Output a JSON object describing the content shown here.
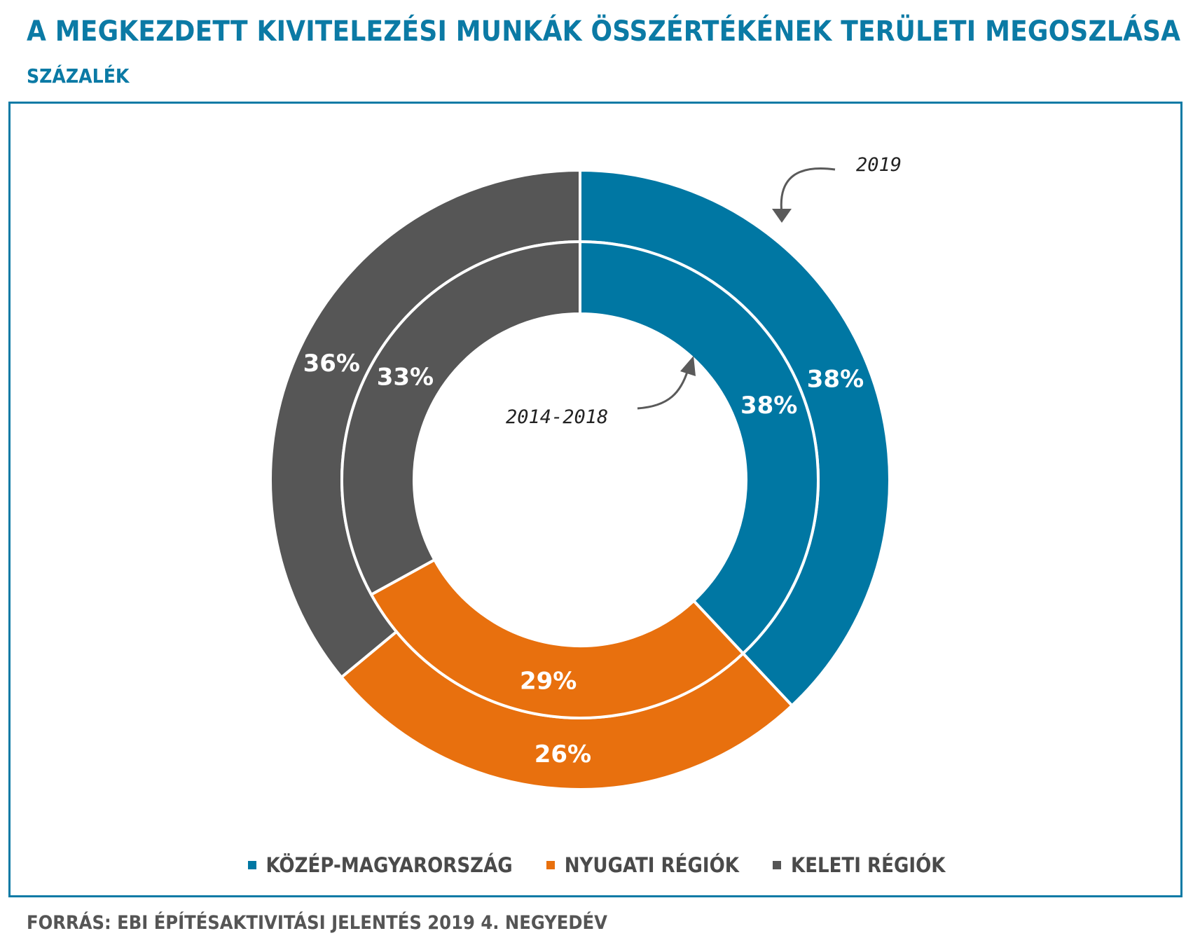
{
  "header": {
    "title": "A MEGKEZDETT KIVITELEZÉSI MUNKÁK ÖSSZÉRTÉKÉNEK TERÜLETI MEGOSZLÁSA",
    "subtitle": "SZÁZALÉK"
  },
  "source": "FORRÁS: EBI ÉPÍTÉSAKTIVITÁSI JELENTÉS 2019 4. NEGYEDÉV",
  "chart_data": {
    "type": "donut",
    "categories": [
      "KÖZÉP-MAGYARORSZÁG",
      "NYUGATI RÉGIÓK",
      "KELETI RÉGIÓK"
    ],
    "colors": [
      "#0077a3",
      "#e8700e",
      "#565656"
    ],
    "series": [
      {
        "name": "2019",
        "ring": "outer",
        "values": [
          38,
          26,
          36
        ],
        "labels": [
          "38%",
          "26%",
          "36%"
        ]
      },
      {
        "name": "2014-2018",
        "ring": "inner",
        "values": [
          38,
          29,
          33
        ],
        "labels": [
          "38%",
          "29%",
          "33%"
        ]
      }
    ],
    "annotations": [
      {
        "text": "2019",
        "points_to": "outer ring"
      },
      {
        "text": "2014-2018",
        "points_to": "inner ring"
      }
    ],
    "legend_position": "bottom"
  }
}
